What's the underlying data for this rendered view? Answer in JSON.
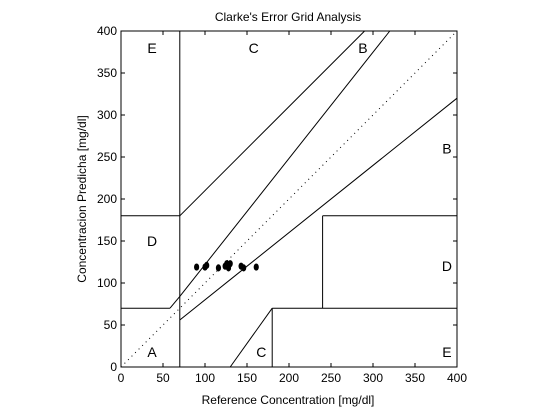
{
  "chart_data": {
    "type": "scatter",
    "title": "Clarke's Error Grid Analysis",
    "xlabel": "Reference Concentration [mg/dl]",
    "ylabel": "Concentracion Predicha [mg/dl]",
    "xlim": [
      0,
      400
    ],
    "ylim": [
      0,
      400
    ],
    "xticks": [
      0,
      50,
      100,
      150,
      200,
      250,
      300,
      350,
      400
    ],
    "yticks": [
      0,
      50,
      100,
      150,
      200,
      250,
      300,
      350,
      400
    ],
    "grid": false,
    "identity_line": "dotted",
    "boundary_lines": [
      [
        [
          0,
          70
        ],
        [
          58.3,
          70
        ]
      ],
      [
        [
          70,
          0
        ],
        [
          70,
          400
        ]
      ],
      [
        [
          0,
          180
        ],
        [
          70,
          180
        ]
      ],
      [
        [
          70,
          180
        ],
        [
          290,
          400
        ]
      ],
      [
        [
          58.3,
          70
        ],
        [
          70,
          84
        ]
      ],
      [
        [
          70,
          84
        ],
        [
          320,
          400
        ]
      ],
      [
        [
          70,
          56
        ],
        [
          400,
          320
        ]
      ],
      [
        [
          130,
          0
        ],
        [
          180,
          70
        ]
      ],
      [
        [
          180,
          0
        ],
        [
          180,
          70
        ]
      ],
      [
        [
          180,
          70
        ],
        [
          400,
          70
        ]
      ],
      [
        [
          240,
          70
        ],
        [
          240,
          180
        ]
      ],
      [
        [
          240,
          180
        ],
        [
          400,
          180
        ]
      ]
    ],
    "zone_labels": [
      {
        "text": "E",
        "x": 37,
        "y": 380
      },
      {
        "text": "C",
        "x": 158,
        "y": 380
      },
      {
        "text": "B",
        "x": 288,
        "y": 380
      },
      {
        "text": "B",
        "x": 388,
        "y": 260
      },
      {
        "text": "D",
        "x": 37,
        "y": 150
      },
      {
        "text": "D",
        "x": 388,
        "y": 120
      },
      {
        "text": "A",
        "x": 37,
        "y": 18
      },
      {
        "text": "C",
        "x": 167,
        "y": 18
      },
      {
        "text": "E",
        "x": 388,
        "y": 18
      }
    ],
    "points": [
      {
        "x": 90,
        "y": 119
      },
      {
        "x": 100,
        "y": 119
      },
      {
        "x": 102,
        "y": 121
      },
      {
        "x": 116,
        "y": 118
      },
      {
        "x": 124,
        "y": 120
      },
      {
        "x": 126,
        "y": 123
      },
      {
        "x": 128,
        "y": 118
      },
      {
        "x": 130,
        "y": 123
      },
      {
        "x": 143,
        "y": 120
      },
      {
        "x": 146,
        "y": 118
      },
      {
        "x": 161,
        "y": 119
      }
    ]
  }
}
